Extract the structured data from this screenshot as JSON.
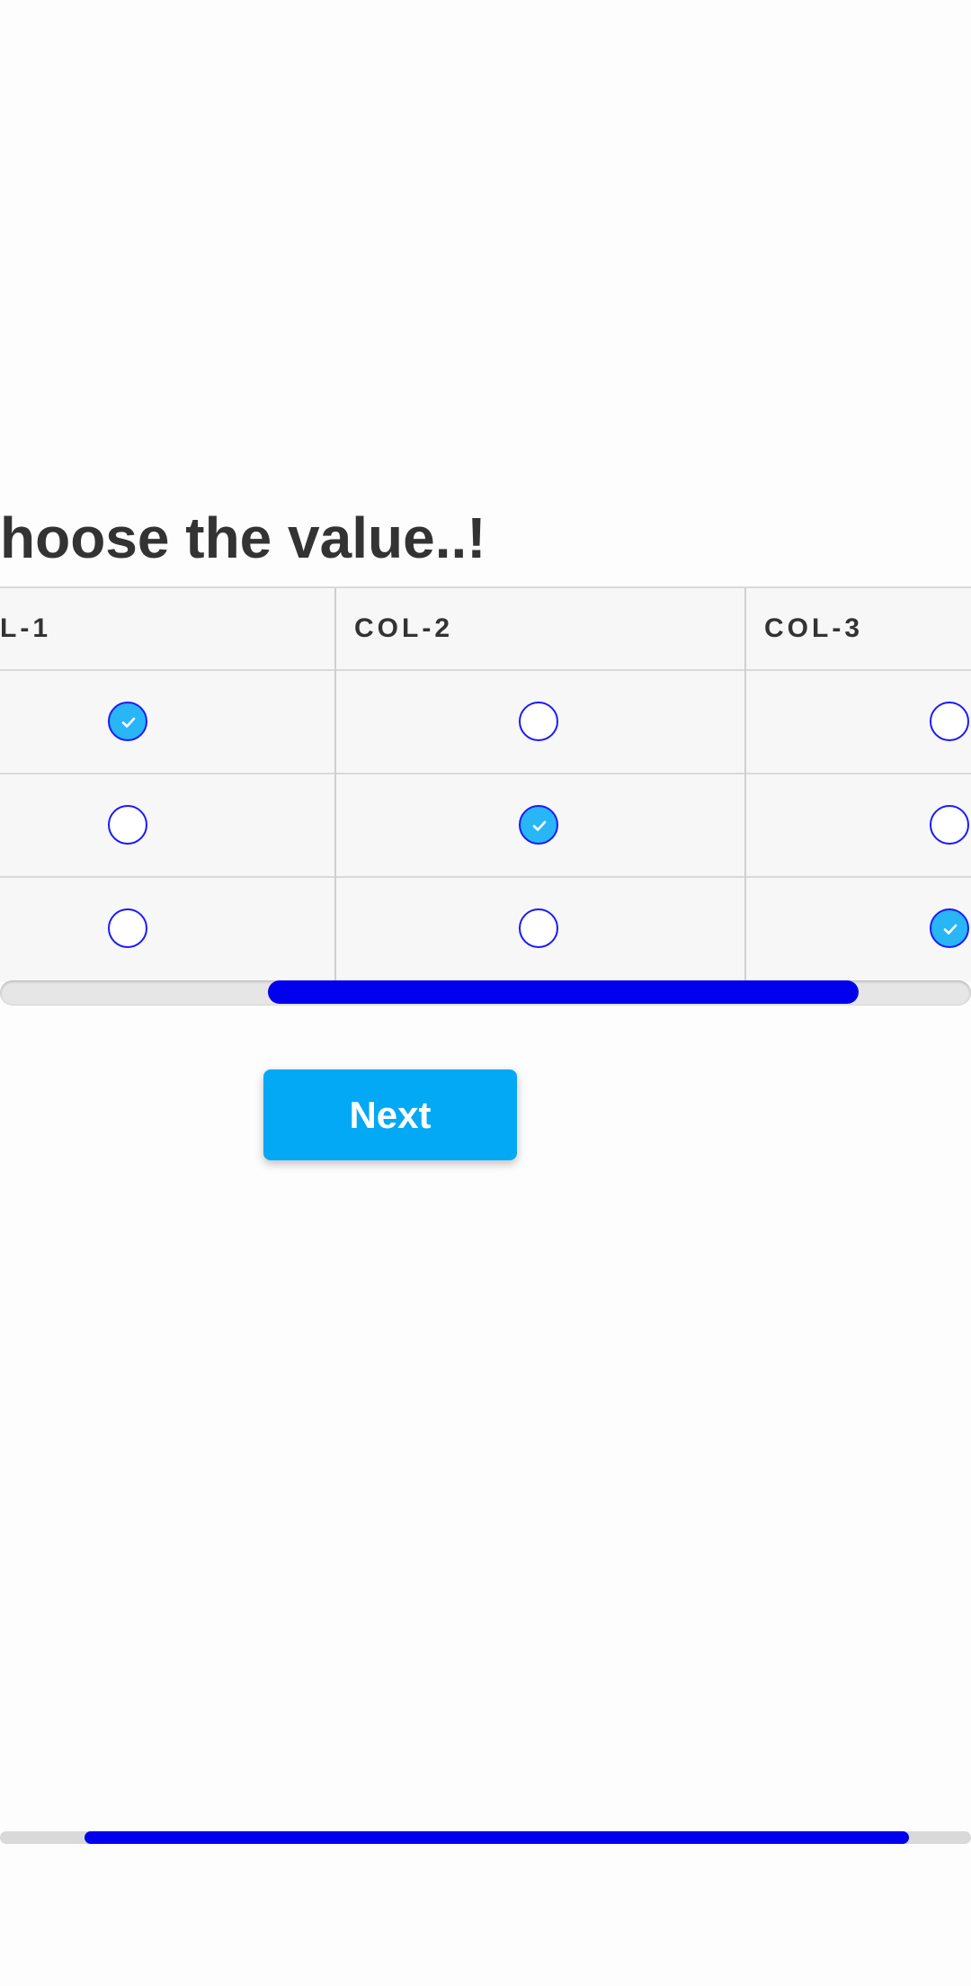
{
  "question": {
    "title": "hoose the value..!"
  },
  "matrix": {
    "columns": [
      "L-1",
      "COL-2",
      "COL-3"
    ],
    "rows": [
      {
        "selected_column": 0
      },
      {
        "selected_column": 1
      },
      {
        "selected_column": 2
      }
    ]
  },
  "navigation": {
    "next_label": "Next"
  },
  "progress": {
    "fraction": 0.93
  },
  "colors": {
    "accent_blue": "#0000ee",
    "button_blue": "#03a9f4",
    "radio_checked_fill": "#29b6f6"
  }
}
